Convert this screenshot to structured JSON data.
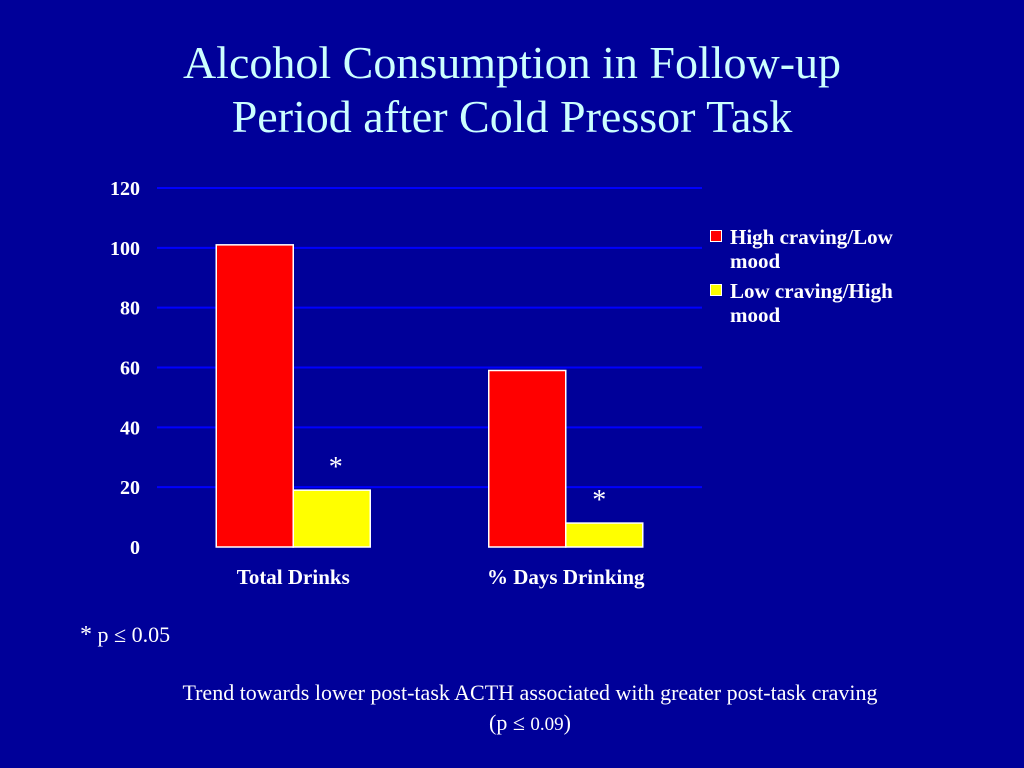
{
  "title": {
    "line1": "Alcohol Consumption in Follow-up",
    "line2": "Period after Cold Pressor Task"
  },
  "chart_data": {
    "type": "bar",
    "categories": [
      "Total Drinks",
      "% Days Drinking"
    ],
    "series": [
      {
        "name": "High craving/Low mood",
        "values": [
          101,
          59
        ],
        "color": "#ff0000"
      },
      {
        "name": "Low craving/High mood",
        "values": [
          19,
          8
        ],
        "color": "#ffff00"
      }
    ],
    "significance_markers": [
      "*",
      "*"
    ],
    "ylim": [
      0,
      120
    ],
    "yticks": [
      0,
      20,
      40,
      60,
      80,
      100,
      120
    ],
    "grid": true,
    "legend_position": "right",
    "gridline_color": "#0000ff"
  },
  "legend": {
    "item1_line1": "High craving/Low",
    "item1_line2": "mood",
    "item2_line1": "Low craving/High",
    "item2_line2": "mood"
  },
  "footnote": {
    "star": "*",
    "text": "p ≤ 0.05"
  },
  "trend": {
    "line1": "Trend towards lower post-task ACTH associated with greater post-task craving",
    "line2_prefix": "(p ≤",
    "line2_value": "0.09",
    "line2_suffix": ")"
  }
}
